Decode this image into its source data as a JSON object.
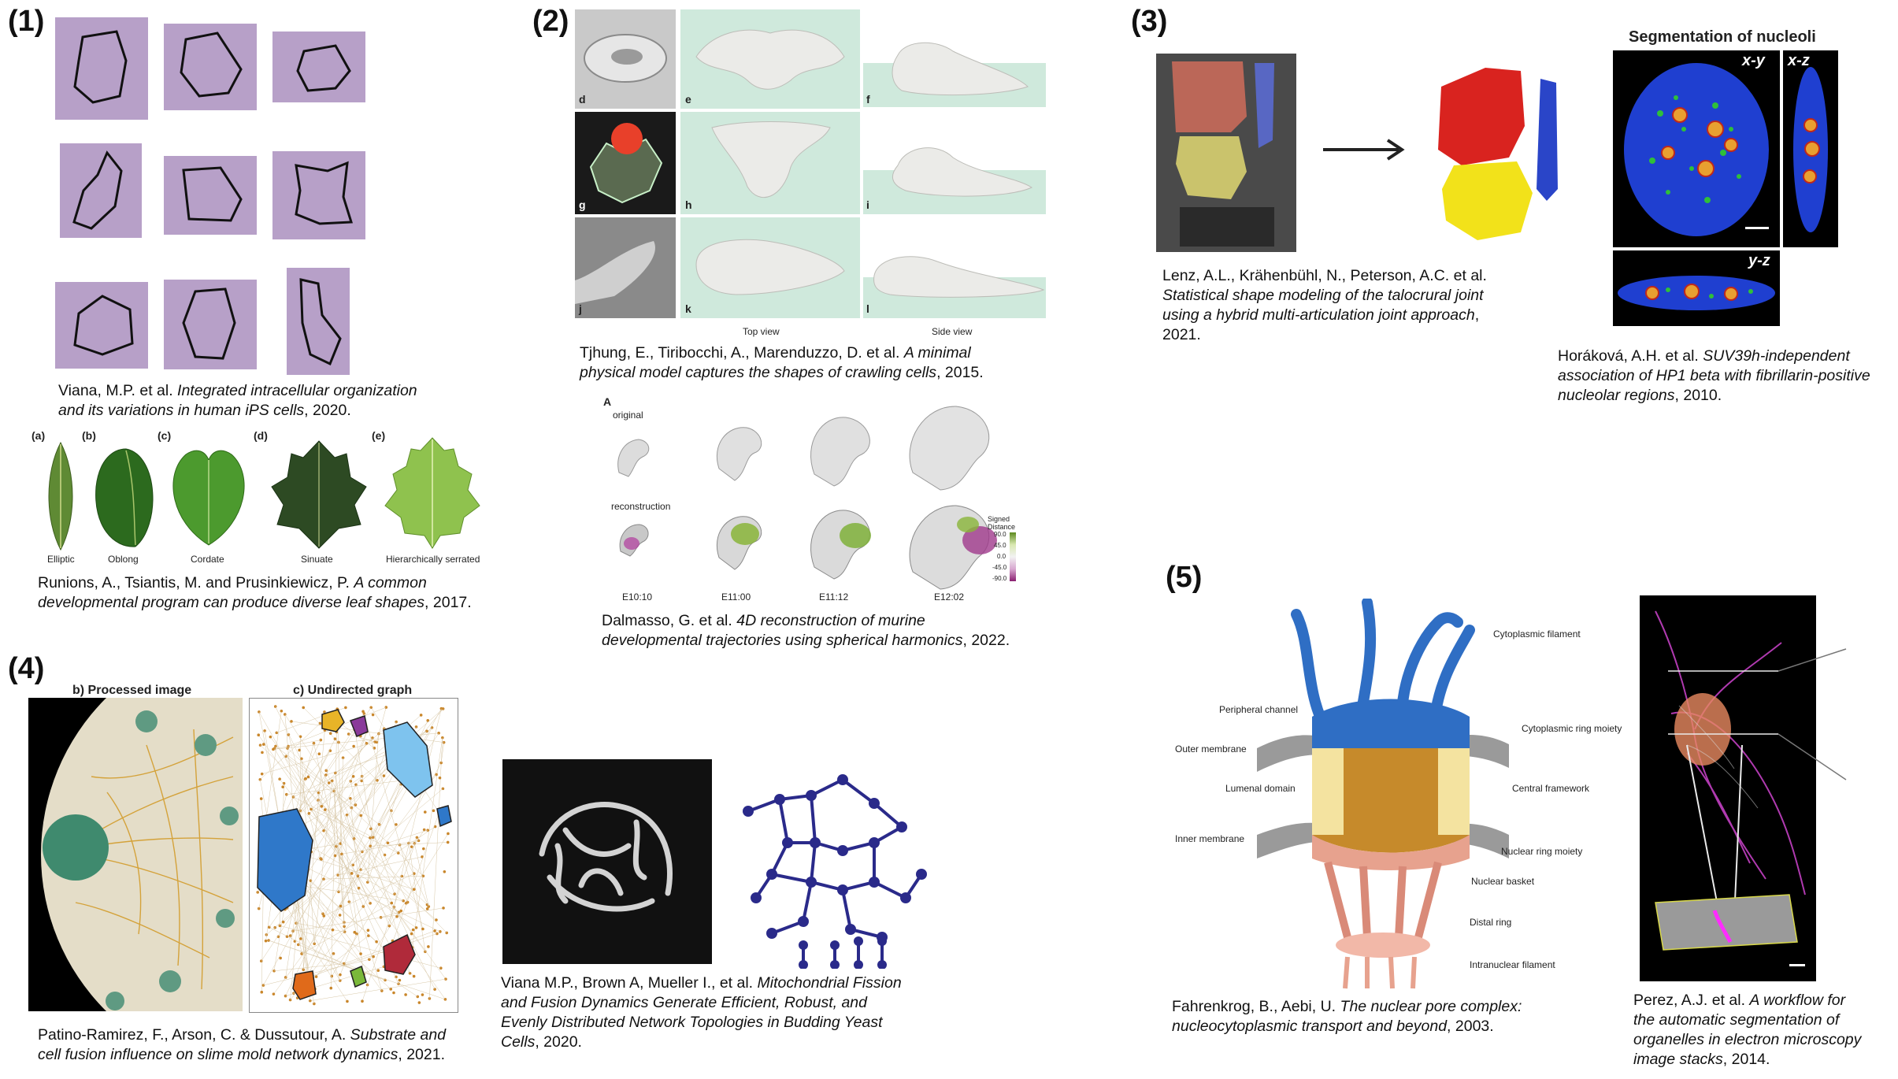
{
  "panels": {
    "p1": {
      "number": "(1)",
      "caption": {
        "authors": "Viana, M.P. et al. ",
        "title_line1": "Integrated intracellular organization",
        "title_line2": "and its variations in human iPS cells",
        "year": ", 2020."
      },
      "leaf_letters": [
        "(a)",
        "(b)",
        "(c)",
        "(d)",
        "(e)"
      ],
      "leaf_names": [
        "Elliptic",
        "Oblong",
        "Cordate",
        "Sinuate",
        "Hierarchically serrated"
      ],
      "leaf_caption": {
        "line1_authors": "Runions, A., Tsiantis, M. and Prusinkiewicz, P. ",
        "line1_title": "A common",
        "line2_title": "developmental program can produce diverse leaf shapes",
        "year": ", 2017."
      }
    },
    "p2": {
      "number": "(2)",
      "row_letters": [
        "d",
        "e",
        "f",
        "g",
        "h",
        "i",
        "j",
        "k",
        "l"
      ],
      "view_labels": [
        "Top view",
        "Side view"
      ],
      "caption": {
        "authors": "Tjhung, E., Tiribocchi, A., Marenduzzo, D. et al. ",
        "title_line1": "A minimal",
        "title_line2": "physical model captures the shapes of crawling cells",
        "year": ", 2015."
      },
      "embryo": {
        "letter": "A",
        "row1": "original",
        "row2": "reconstruction",
        "stages": [
          "E10:10",
          "E11:00",
          "E11:12",
          "E12:02"
        ],
        "legend_title": "Signed Distance",
        "legend_ticks": [
          "90.0",
          "45.0",
          "0.0",
          "-45.0",
          "-90.0"
        ]
      },
      "caption2": {
        "authors": "Dalmasso, G. et al. ",
        "title_line1": "4D reconstruction of murine",
        "title_line2": "developmental trajectories using spherical harmonics",
        "year": ", 2022."
      }
    },
    "p3": {
      "number": "(3)",
      "caption": {
        "line1": "Lenz, A.L., Krähenbühl, N., Peterson, A.C. et al.",
        "title_line1": "Statistical shape modeling of the talocrural joint",
        "title_line2": "using a hybrid multi-articulation joint approach",
        "year": "2021."
      },
      "nucleoli": {
        "title": "Segmentation of nucleoli",
        "views": [
          "x-y",
          "x-z",
          "y-z"
        ]
      },
      "caption2": {
        "authors": "Horáková, A.H. et al. ",
        "title_line1": "SUV39h-independent",
        "title_line2": "association of HP1 beta with fibrillarin-positive",
        "title_line3": "nucleolar regions",
        "year": ", 2010."
      }
    },
    "p4": {
      "number": "(4)",
      "label_a": "b) Processed image",
      "label_b": "c) Undirected graph",
      "caption": {
        "authors": "Patino-Ramirez, F., Arson, C. & Dussutour, A. ",
        "title_line1": "Substrate and",
        "title_line2": "cell fusion influence on slime mold network dynamics",
        "year": ", 2021."
      },
      "caption2": {
        "authors": "Viana M.P., Brown A, Mueller I., et al. ",
        "title_line1": "Mitochondrial Fission",
        "title_line2": "and Fusion Dynamics Generate Efficient, Robust, and",
        "title_line3": "Evenly Distributed Network Topologies in Budding Yeast",
        "title_line4": "Cells",
        "year": ", 2020."
      }
    },
    "p5": {
      "number": "(5)",
      "pore_labels_left": [
        "Peripheral channel",
        "Outer membrane",
        "Lumenal domain",
        "Inner membrane"
      ],
      "pore_labels_right": [
        "Cytoplasmic filament",
        "Cytoplasmic ring moiety",
        "Central framework",
        "Nuclear ring moiety",
        "Nuclear basket",
        "Distal ring",
        "Intranuclear filament"
      ],
      "caption": {
        "authors": "Fahrenkrog, B., Aebi, U. ",
        "title_line1": "The nuclear pore complex:",
        "title_line2": "nucleocytoplasmic transport and beyond",
        "year": ", 2003."
      },
      "caption2": {
        "authors": "Perez, A.J.  et al. ",
        "title_line1": "A workflow for",
        "title_line2": "the automatic segmentation of",
        "title_line3": "organelles in electron microscopy",
        "title_line4": "image stacks",
        "year": ", 2014."
      }
    }
  },
  "colors": {
    "cell_bg": "#b7a0c8",
    "mint": "#cfe9dc",
    "shape_gray": "#e9e9e7",
    "bone_red": "#d9231f",
    "bone_yellow": "#f2e21a",
    "bone_blue": "#2a45c8",
    "graph_blue": "#2f78c9",
    "graph_orange": "#c9862a",
    "pore_blue": "#2f6ec4",
    "pore_gold": "#c68a2b",
    "pore_pink": "#e7a28e",
    "nucleus_blue": "#1f3fd0",
    "mito_navy": "#2a2a8a"
  }
}
